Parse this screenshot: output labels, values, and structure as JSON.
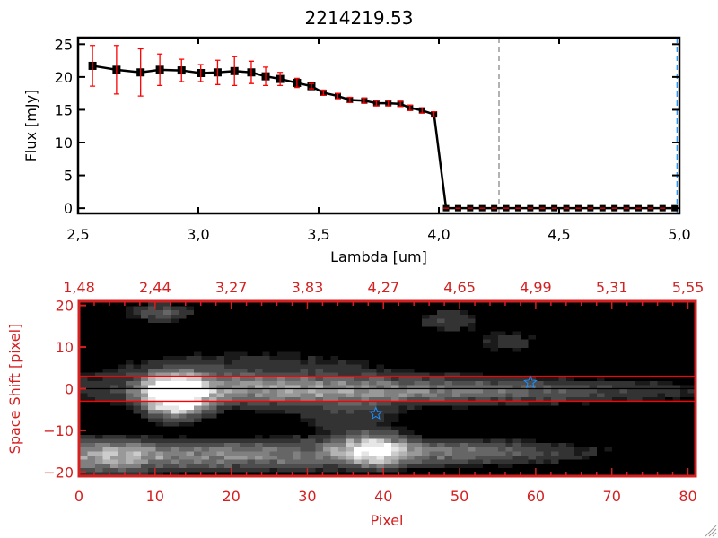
{
  "chart_data": [
    {
      "type": "scatter",
      "title": "2214219.53",
      "xlabel": "Lambda [um]",
      "ylabel": "Flux [mJy]",
      "xlim": [
        2.5,
        5.0
      ],
      "ylim": [
        -0.8,
        26
      ],
      "xticks": [
        "2.5",
        "3.0",
        "3.5",
        "4.0",
        "4.5",
        "5.0"
      ],
      "yticks": [
        "0",
        "5",
        "10",
        "15",
        "20",
        "25"
      ],
      "series": [
        {
          "name": "flux",
          "x": [
            2.56,
            2.66,
            2.76,
            2.84,
            2.93,
            3.01,
            3.08,
            3.15,
            3.22,
            3.28,
            3.34,
            3.41,
            3.47,
            3.52,
            3.58,
            3.63,
            3.69,
            3.74,
            3.79,
            3.84,
            3.88,
            3.93,
            3.98,
            4.03,
            4.08,
            4.13,
            4.18,
            4.23,
            4.28,
            4.33,
            4.38,
            4.43,
            4.48,
            4.53,
            4.58,
            4.63,
            4.68,
            4.73,
            4.78,
            4.83,
            4.88,
            4.93,
            4.98
          ],
          "y": [
            21.7,
            21.1,
            20.7,
            21.1,
            21.0,
            20.6,
            20.7,
            20.9,
            20.7,
            20.1,
            19.7,
            19.1,
            18.6,
            17.6,
            17.1,
            16.5,
            16.4,
            16.0,
            16.0,
            15.9,
            15.3,
            14.9,
            14.3,
            0,
            0,
            0,
            0,
            0,
            0,
            0,
            0,
            0,
            0,
            0,
            0,
            0,
            0,
            0,
            0,
            0,
            0,
            0,
            0
          ],
          "yerr": [
            3.1,
            3.7,
            3.6,
            2.4,
            1.7,
            1.3,
            1.85,
            2.2,
            1.7,
            1.4,
            1.0,
            0.7,
            0.4,
            0.4,
            0.4,
            0.4,
            0.4,
            0.4,
            0.4,
            0.4,
            0.4,
            0.4,
            0.4,
            0,
            0,
            0,
            0,
            0,
            0,
            0,
            0,
            0,
            0,
            0,
            0,
            0,
            0,
            0,
            0,
            0,
            0,
            0,
            0
          ]
        }
      ],
      "vlines": [
        {
          "x": 4.25,
          "color": "#888888"
        },
        {
          "x": 4.99,
          "color": "#1e90ff"
        }
      ],
      "hline": {
        "y": 0,
        "color": "#ff0000"
      }
    },
    {
      "type": "heatmap",
      "xlabel": "Pixel",
      "ylabel": "Space Shift [pixel]",
      "xlim": [
        0,
        81
      ],
      "ylim": [
        -21,
        21
      ],
      "xticks": [
        "0",
        "10",
        "20",
        "30",
        "40",
        "50",
        "60",
        "70",
        "80"
      ],
      "yticks": [
        "-20",
        "-10",
        "0",
        "10",
        "20"
      ],
      "top_ticks": [
        "1.48",
        "2.44",
        "3.27",
        "3.83",
        "4.27",
        "4.65",
        "4.99",
        "5.31",
        "5.55"
      ],
      "hlines": [
        {
          "y": 3,
          "color": "#ff0000"
        },
        {
          "y": -3,
          "color": "#ff0000"
        },
        {
          "y": 0,
          "color": "#000000"
        }
      ],
      "stars": [
        {
          "x": 39,
          "y": -6
        },
        {
          "x": 59.3,
          "y": 1.5
        }
      ]
    }
  ],
  "colors": {
    "axis_red": "#d42020",
    "err_red": "#ff0000",
    "star": "#1e90ff"
  }
}
